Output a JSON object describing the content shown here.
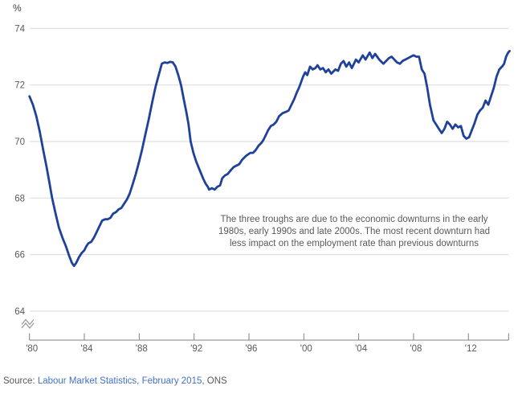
{
  "colors": {
    "series_line": "#20419a",
    "gridline": "#d9d9d9",
    "axis": "#808080",
    "tick_label": "#595959",
    "annotation_text": "#595959",
    "source_text": "#595959",
    "source_link": "#4472c4",
    "break_glyph": "#999999"
  },
  "chart_data": {
    "type": "line",
    "title": "",
    "unit_label": "%",
    "xlabel": "",
    "ylabel": "%",
    "ylim": [
      64,
      74
    ],
    "y_axis_break": true,
    "grid": "horizontal",
    "legend_position": "none",
    "y_ticks": [
      74,
      72,
      70,
      68,
      66,
      64
    ],
    "x_ticks": [
      {
        "label": "'80",
        "year": 1980
      },
      {
        "label": "'84",
        "year": 1984
      },
      {
        "label": "'88",
        "year": 1988
      },
      {
        "label": "'92",
        "year": 1992
      },
      {
        "label": "'96",
        "year": 1996
      },
      {
        "label": "'00",
        "year": 2000
      },
      {
        "label": "'04",
        "year": 2004
      },
      {
        "label": "'08",
        "year": 2008
      },
      {
        "label": "'12",
        "year": 2012
      }
    ],
    "x_range_years": [
      1980,
      2015
    ],
    "series": [
      {
        "points": [
          [
            1980.0,
            71.6
          ],
          [
            1980.25,
            71.3
          ],
          [
            1980.5,
            70.9
          ],
          [
            1980.75,
            70.35
          ],
          [
            1981.0,
            69.7
          ],
          [
            1981.25,
            69.1
          ],
          [
            1981.45,
            68.55
          ],
          [
            1981.65,
            68.0
          ],
          [
            1981.9,
            67.45
          ],
          [
            1982.15,
            66.95
          ],
          [
            1982.4,
            66.6
          ],
          [
            1982.65,
            66.3
          ],
          [
            1982.9,
            65.95
          ],
          [
            1983.1,
            65.7
          ],
          [
            1983.25,
            65.6
          ],
          [
            1983.4,
            65.7
          ],
          [
            1983.6,
            65.9
          ],
          [
            1983.8,
            66.05
          ],
          [
            1984.0,
            66.15
          ],
          [
            1984.15,
            66.3
          ],
          [
            1984.3,
            66.4
          ],
          [
            1984.5,
            66.45
          ],
          [
            1984.7,
            66.6
          ],
          [
            1984.9,
            66.8
          ],
          [
            1985.1,
            67.0
          ],
          [
            1985.3,
            67.2
          ],
          [
            1985.5,
            67.25
          ],
          [
            1985.7,
            67.25
          ],
          [
            1985.9,
            67.3
          ],
          [
            1986.1,
            67.45
          ],
          [
            1986.3,
            67.5
          ],
          [
            1986.5,
            67.6
          ],
          [
            1986.7,
            67.65
          ],
          [
            1986.9,
            67.8
          ],
          [
            1987.1,
            67.95
          ],
          [
            1987.3,
            68.15
          ],
          [
            1987.5,
            68.45
          ],
          [
            1987.75,
            68.85
          ],
          [
            1988.0,
            69.3
          ],
          [
            1988.2,
            69.7
          ],
          [
            1988.45,
            70.25
          ],
          [
            1988.7,
            70.8
          ],
          [
            1988.95,
            71.4
          ],
          [
            1989.2,
            71.95
          ],
          [
            1989.45,
            72.4
          ],
          [
            1989.65,
            72.75
          ],
          [
            1989.85,
            72.8
          ],
          [
            1990.05,
            72.78
          ],
          [
            1990.25,
            72.82
          ],
          [
            1990.45,
            72.8
          ],
          [
            1990.65,
            72.65
          ],
          [
            1990.85,
            72.35
          ],
          [
            1991.05,
            72.0
          ],
          [
            1991.25,
            71.5
          ],
          [
            1991.45,
            71.0
          ],
          [
            1991.6,
            70.6
          ],
          [
            1991.75,
            70.0
          ],
          [
            1991.95,
            69.6
          ],
          [
            1992.15,
            69.3
          ],
          [
            1992.4,
            69.0
          ],
          [
            1992.65,
            68.7
          ],
          [
            1992.85,
            68.5
          ],
          [
            1993.0,
            68.4
          ],
          [
            1993.1,
            68.3
          ],
          [
            1993.3,
            68.35
          ],
          [
            1993.5,
            68.3
          ],
          [
            1993.7,
            68.4
          ],
          [
            1993.9,
            68.45
          ],
          [
            1994.05,
            68.7
          ],
          [
            1994.25,
            68.8
          ],
          [
            1994.45,
            68.85
          ],
          [
            1994.7,
            69.0
          ],
          [
            1994.9,
            69.1
          ],
          [
            1995.1,
            69.15
          ],
          [
            1995.3,
            69.2
          ],
          [
            1995.5,
            69.35
          ],
          [
            1995.8,
            69.5
          ],
          [
            1996.1,
            69.6
          ],
          [
            1996.3,
            69.6
          ],
          [
            1996.5,
            69.7
          ],
          [
            1996.7,
            69.85
          ],
          [
            1996.9,
            69.95
          ],
          [
            1997.05,
            70.05
          ],
          [
            1997.2,
            70.2
          ],
          [
            1997.4,
            70.4
          ],
          [
            1997.6,
            70.55
          ],
          [
            1997.8,
            70.6
          ],
          [
            1998.0,
            70.7
          ],
          [
            1998.2,
            70.9
          ],
          [
            1998.45,
            71.0
          ],
          [
            1998.7,
            71.05
          ],
          [
            1998.9,
            71.1
          ],
          [
            1999.1,
            71.3
          ],
          [
            1999.3,
            71.5
          ],
          [
            1999.5,
            71.75
          ],
          [
            1999.65,
            71.9
          ],
          [
            1999.8,
            72.1
          ],
          [
            1999.95,
            72.3
          ],
          [
            2000.1,
            72.45
          ],
          [
            2000.25,
            72.35
          ],
          [
            2000.45,
            72.65
          ],
          [
            2000.65,
            72.55
          ],
          [
            2000.85,
            72.6
          ],
          [
            2001.0,
            72.7
          ],
          [
            2001.2,
            72.55
          ],
          [
            2001.4,
            72.6
          ],
          [
            2001.6,
            72.45
          ],
          [
            2001.8,
            72.55
          ],
          [
            2002.0,
            72.4
          ],
          [
            2002.3,
            72.55
          ],
          [
            2002.5,
            72.5
          ],
          [
            2002.7,
            72.75
          ],
          [
            2002.9,
            72.85
          ],
          [
            2003.1,
            72.65
          ],
          [
            2003.3,
            72.8
          ],
          [
            2003.5,
            72.6
          ],
          [
            2003.8,
            72.9
          ],
          [
            2004.0,
            72.8
          ],
          [
            2004.3,
            73.05
          ],
          [
            2004.5,
            72.9
          ],
          [
            2004.8,
            73.15
          ],
          [
            2005.0,
            72.95
          ],
          [
            2005.2,
            73.1
          ],
          [
            2005.5,
            72.9
          ],
          [
            2005.8,
            72.75
          ],
          [
            2006.0,
            72.85
          ],
          [
            2006.2,
            72.95
          ],
          [
            2006.4,
            73.0
          ],
          [
            2006.6,
            72.9
          ],
          [
            2006.8,
            72.8
          ],
          [
            2007.0,
            72.75
          ],
          [
            2007.2,
            72.85
          ],
          [
            2007.4,
            72.9
          ],
          [
            2007.6,
            72.95
          ],
          [
            2007.8,
            73.0
          ],
          [
            2008.0,
            73.05
          ],
          [
            2008.2,
            73.0
          ],
          [
            2008.4,
            73.0
          ],
          [
            2008.6,
            72.55
          ],
          [
            2008.8,
            72.4
          ],
          [
            2009.0,
            71.9
          ],
          [
            2009.2,
            71.3
          ],
          [
            2009.45,
            70.75
          ],
          [
            2009.65,
            70.6
          ],
          [
            2009.85,
            70.45
          ],
          [
            2010.05,
            70.3
          ],
          [
            2010.25,
            70.45
          ],
          [
            2010.45,
            70.7
          ],
          [
            2010.65,
            70.6
          ],
          [
            2010.85,
            70.45
          ],
          [
            2011.05,
            70.6
          ],
          [
            2011.25,
            70.5
          ],
          [
            2011.45,
            70.55
          ],
          [
            2011.65,
            70.2
          ],
          [
            2011.85,
            70.1
          ],
          [
            2012.05,
            70.15
          ],
          [
            2012.25,
            70.4
          ],
          [
            2012.45,
            70.65
          ],
          [
            2012.65,
            70.95
          ],
          [
            2012.85,
            71.1
          ],
          [
            2013.05,
            71.2
          ],
          [
            2013.25,
            71.45
          ],
          [
            2013.45,
            71.3
          ],
          [
            2013.65,
            71.6
          ],
          [
            2013.85,
            71.9
          ],
          [
            2014.05,
            72.3
          ],
          [
            2014.25,
            72.55
          ],
          [
            2014.45,
            72.65
          ],
          [
            2014.6,
            72.75
          ],
          [
            2014.75,
            73.0
          ],
          [
            2014.9,
            73.15
          ],
          [
            2015.0,
            73.2
          ]
        ]
      }
    ],
    "annotation": {
      "lines": [
        "The three troughs are due to the economic downturns in the early",
        "1980s, early 1990s and late 2000s. The most recent downturn had",
        "less impact on the employment rate than previous downturns"
      ]
    }
  },
  "source": {
    "prefix": "Source: ",
    "link_text": "Labour Market Statistics, February 2015",
    "suffix": ", ONS"
  }
}
